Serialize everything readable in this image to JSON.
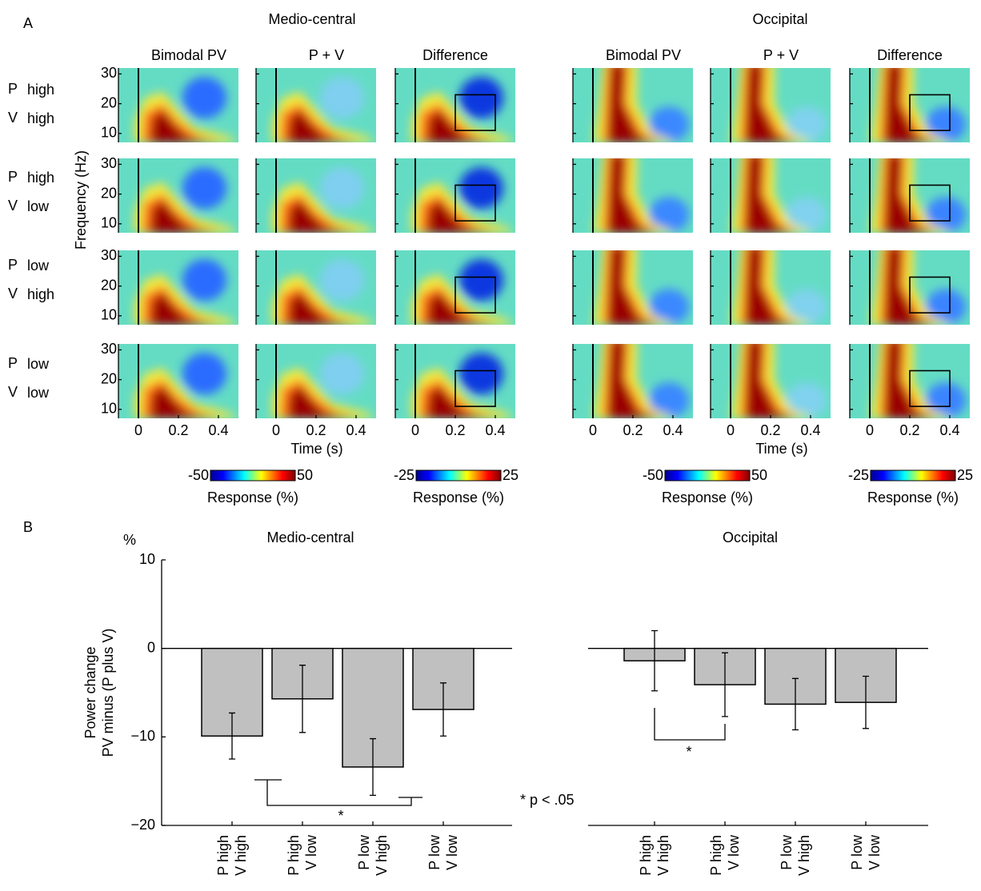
{
  "panel_a": {
    "label": "A",
    "regions": [
      {
        "title": "Medio-central"
      },
      {
        "title": "Occipital"
      }
    ],
    "columns": [
      "Bimodal PV",
      "P + V",
      "Difference"
    ],
    "rows": [
      [
        "P",
        "high",
        "V",
        "high"
      ],
      [
        "P",
        "high",
        "V",
        "low"
      ],
      [
        "P",
        "low",
        "V",
        "high"
      ],
      [
        "P",
        "low",
        "V",
        "low"
      ]
    ],
    "freq_label": "Frequency (Hz)",
    "time_label": "Time (s)",
    "xlim": [
      -0.1,
      0.5
    ],
    "xticks": [
      0,
      0.2,
      0.4
    ],
    "ylim": [
      7,
      32
    ],
    "yticks": [
      10,
      20,
      30
    ],
    "colorbars": [
      {
        "min": -50,
        "max": 50
      },
      {
        "min": -25,
        "max": 25
      }
    ],
    "colorbar_label": "Response (%)"
  },
  "panel_b": {
    "label": "B",
    "note": "* p < .05"
  },
  "chart_data": [
    {
      "type": "bar",
      "title": "Medio-central",
      "y_unit": "%",
      "y_label": [
        "Power change",
        "PV minus (P plus V)"
      ],
      "categories": [
        [
          "P high",
          "V high"
        ],
        [
          "P high",
          "V low"
        ],
        [
          "P low",
          "V high"
        ],
        [
          "P low",
          "V low"
        ]
      ],
      "values": [
        -9.9,
        -5.7,
        -13.4,
        -6.9
      ],
      "errors": [
        2.6,
        3.8,
        3.2,
        3.0
      ],
      "color": "#c0c0c0",
      "ylim": [
        -20,
        10
      ],
      "yticks": [
        {
          "value": -20,
          "label": "−20"
        },
        {
          "value": -10,
          "label": "−10"
        },
        0,
        10
      ],
      "annotations": [
        "*"
      ]
    },
    {
      "type": "bar",
      "title": "Occipital",
      "categories": [
        [
          "P high",
          "V high"
        ],
        [
          "P high",
          "V low"
        ],
        [
          "P low",
          "V high"
        ],
        [
          "P low",
          "V low"
        ]
      ],
      "values": [
        -1.4,
        -4.1,
        -6.3,
        -6.1
      ],
      "errors": [
        3.4,
        3.6,
        2.9,
        2.95
      ],
      "color": "#c0c0c0",
      "ylim": [
        -20,
        10
      ],
      "annotations": [
        "*"
      ]
    }
  ]
}
